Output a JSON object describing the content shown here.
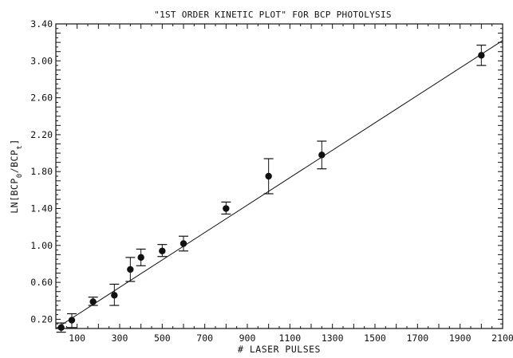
{
  "chart_data": {
    "type": "scatter",
    "title": "\"1ST ORDER KINETIC PLOT\" FOR BCP PHOTOLYSIS",
    "xlabel": "# LASER PULSES",
    "ylabel": "LN[BCP0/BCPt]",
    "ylabel_parts": {
      "main": "LN[BCP",
      "sub1": "0",
      "mid": "/BCP",
      "sub2": "t",
      "end": "]"
    },
    "xlim": [
      0,
      2100
    ],
    "ylim": [
      0.1,
      3.4
    ],
    "x_ticks": [
      100,
      300,
      500,
      700,
      900,
      1100,
      1300,
      1500,
      1700,
      1900,
      2100
    ],
    "x_tick_labels": [
      "100",
      "300",
      "500",
      "700",
      "900",
      "1100",
      "1300",
      "1500",
      "1700",
      "1900",
      "2100"
    ],
    "y_ticks": [
      0.2,
      0.6,
      1.0,
      1.4,
      1.8,
      2.2,
      2.6,
      3.0,
      3.4
    ],
    "y_tick_labels": [
      "0.20",
      "0.60",
      "1.00",
      "1.40",
      "1.80",
      "2.20",
      "2.60",
      "3.00",
      "3.40"
    ],
    "grid": false,
    "series": [
      {
        "x": [
          25,
          75,
          175,
          275,
          350,
          400,
          500,
          600,
          800,
          1000,
          1250,
          2000
        ],
        "y": [
          0.11,
          0.19,
          0.39,
          0.46,
          0.74,
          0.87,
          0.94,
          1.02,
          1.4,
          1.75,
          1.98,
          3.06
        ],
        "err_low": [
          0.05,
          0.08,
          0.04,
          0.11,
          0.13,
          0.09,
          0.06,
          0.08,
          0.06,
          0.19,
          0.15,
          0.11
        ],
        "err_high": [
          0.05,
          0.07,
          0.05,
          0.12,
          0.13,
          0.09,
          0.07,
          0.08,
          0.07,
          0.19,
          0.15,
          0.11
        ]
      }
    ],
    "fit_line": {
      "x": [
        0,
        2100
      ],
      "y": [
        0.1,
        3.22
      ]
    }
  },
  "colors": {
    "ink": "#111111",
    "background": "#ffffff"
  }
}
